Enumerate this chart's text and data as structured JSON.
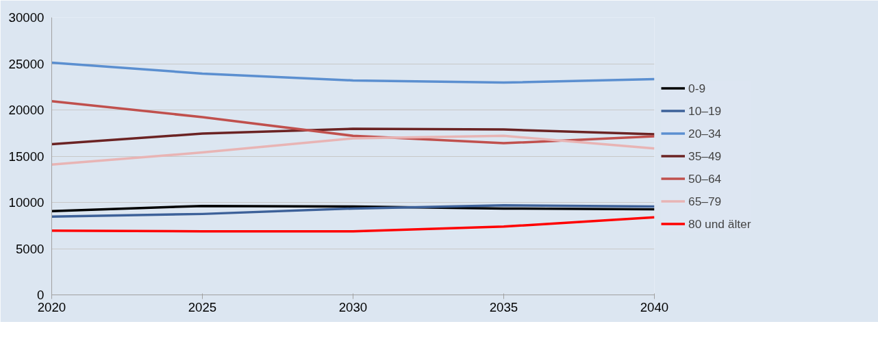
{
  "chart_data": {
    "type": "line",
    "x": [
      2020,
      2025,
      2030,
      2035,
      2040
    ],
    "xlim": [
      2020,
      2040
    ],
    "xticks": [
      2020,
      2025,
      2030,
      2035,
      2040
    ],
    "ylim": [
      0,
      30000
    ],
    "yticks": [
      0,
      5000,
      10000,
      15000,
      20000,
      25000,
      30000
    ],
    "grid": "y",
    "legend": "right",
    "series": [
      {
        "name": "0-9",
        "color": "#000000",
        "values": [
          9050,
          9620,
          9560,
          9340,
          9250
        ]
      },
      {
        "name": "10–19",
        "color": "#3d6199",
        "values": [
          8460,
          8750,
          9340,
          9690,
          9560
        ]
      },
      {
        "name": "20–34",
        "color": "#5b8fd0",
        "values": [
          25110,
          23930,
          23190,
          22960,
          23330
        ]
      },
      {
        "name": "35–49",
        "color": "#6b2323",
        "values": [
          16300,
          17440,
          17960,
          17880,
          17370
        ]
      },
      {
        "name": "50–64",
        "color": "#c0504d",
        "values": [
          20950,
          19220,
          17200,
          16400,
          17140
        ]
      },
      {
        "name": "65–79",
        "color": "#e8b4b4",
        "values": [
          14100,
          15400,
          16920,
          17200,
          15830
        ]
      },
      {
        "name": "80 und älter",
        "color": "#ff0000",
        "values": [
          6940,
          6870,
          6870,
          7380,
          8390
        ]
      }
    ]
  }
}
